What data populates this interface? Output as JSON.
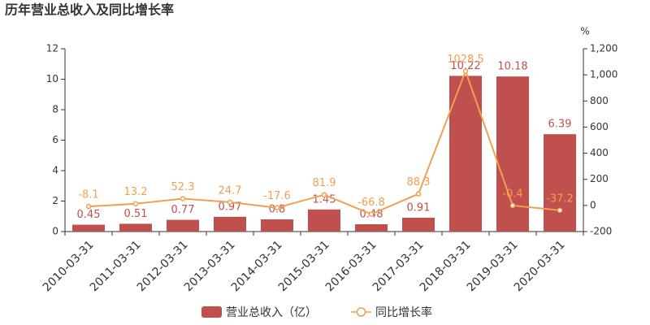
{
  "chart_data": {
    "type": "bar-line",
    "title": "历年营业总收入及同比增长率",
    "y2_unit": "%",
    "categories": [
      "2010-03-31",
      "2011-03-31",
      "2012-03-31",
      "2013-03-31",
      "2014-03-31",
      "2015-03-31",
      "2016-03-31",
      "2017-03-31",
      "2018-03-31",
      "2019-03-31",
      "2020-03-31"
    ],
    "series": [
      {
        "name": "营业总收入（亿）",
        "type": "bar",
        "color": "#c0504d",
        "values": [
          0.45,
          0.51,
          0.77,
          0.97,
          0.8,
          1.45,
          0.48,
          0.91,
          10.22,
          10.18,
          6.39
        ]
      },
      {
        "name": "同比增长率",
        "type": "line",
        "axis": "y2",
        "color": "#f0a050",
        "values": [
          -8.1,
          13.2,
          52.3,
          24.7,
          -17.6,
          81.9,
          -66.8,
          88.3,
          1028.5,
          -0.4,
          -37.2
        ]
      }
    ],
    "ylim": [
      0,
      12
    ],
    "yticks": [
      0,
      2,
      4,
      6,
      8,
      10,
      12
    ],
    "y2lim": [
      -200,
      1200
    ],
    "y2ticks": [
      -200,
      0,
      200,
      400,
      600,
      800,
      {
        "value": 1000,
        "label": "1,000"
      },
      {
        "value": 1200,
        "label": "1,200"
      }
    ]
  }
}
